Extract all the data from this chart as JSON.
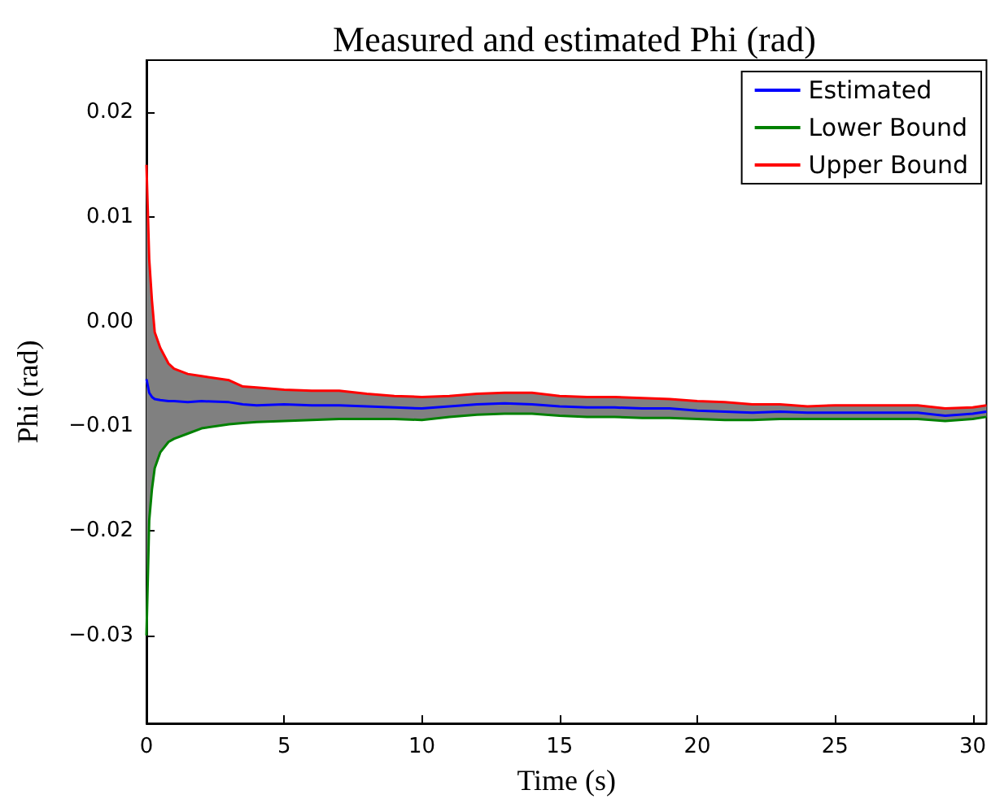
{
  "chart_data": {
    "type": "line",
    "title": "Measured and estimated Phi (rad)",
    "xlabel": "Time (s)",
    "ylabel": "Phi (rad)",
    "x": [
      0,
      0.1,
      0.2,
      0.3,
      0.5,
      0.8,
      1,
      1.5,
      2,
      3,
      3.5,
      4,
      5,
      6,
      7,
      8,
      9,
      10,
      11,
      12,
      13,
      14,
      15,
      16,
      17,
      18,
      19,
      20,
      21,
      22,
      23,
      24,
      25,
      26,
      27,
      28,
      29,
      30,
      30.5
    ],
    "series": [
      {
        "name": "Estimated",
        "color": "#0000ff",
        "values": [
          -0.0055,
          -0.0068,
          -0.0072,
          -0.0074,
          -0.0075,
          -0.0076,
          -0.0076,
          -0.0077,
          -0.0076,
          -0.0077,
          -0.0079,
          -0.008,
          -0.0079,
          -0.008,
          -0.008,
          -0.0081,
          -0.0082,
          -0.0083,
          -0.0081,
          -0.0079,
          -0.0078,
          -0.0079,
          -0.0081,
          -0.0082,
          -0.0082,
          -0.0083,
          -0.0083,
          -0.0085,
          -0.0086,
          -0.0087,
          -0.0086,
          -0.0087,
          -0.0087,
          -0.0087,
          -0.0087,
          -0.0087,
          -0.009,
          -0.0088,
          -0.0086
        ],
        "lower": [
          -0.03,
          -0.019,
          -0.016,
          -0.014,
          -0.0125,
          -0.0115,
          -0.0112,
          -0.0107,
          -0.0102,
          -0.0098,
          -0.0097,
          -0.0096,
          -0.0095,
          -0.0094,
          -0.0093,
          -0.0093,
          -0.0093,
          -0.0094,
          -0.0091,
          -0.0089,
          -0.0088,
          -0.0088,
          -0.009,
          -0.0091,
          -0.0091,
          -0.0092,
          -0.0092,
          -0.0093,
          -0.0094,
          -0.0094,
          -0.0093,
          -0.0093,
          -0.0093,
          -0.0093,
          -0.0093,
          -0.0093,
          -0.0095,
          -0.0093,
          -0.0091
        ],
        "upper": [
          0.015,
          0.006,
          0.002,
          -0.001,
          -0.0025,
          -0.004,
          -0.0045,
          -0.005,
          -0.0052,
          -0.0056,
          -0.0062,
          -0.0063,
          -0.0065,
          -0.0066,
          -0.0066,
          -0.0069,
          -0.0071,
          -0.0072,
          -0.0071,
          -0.0069,
          -0.0068,
          -0.0068,
          -0.0071,
          -0.0072,
          -0.0072,
          -0.0073,
          -0.0074,
          -0.0076,
          -0.0077,
          -0.0079,
          -0.0079,
          -0.0081,
          -0.008,
          -0.008,
          -0.008,
          -0.008,
          -0.0083,
          -0.0082,
          -0.008
        ]
      },
      {
        "name": "Lower Bound",
        "color": "#008000",
        "values": [
          -0.03,
          -0.019,
          -0.016,
          -0.014,
          -0.0125,
          -0.0115,
          -0.0112,
          -0.0107,
          -0.0102,
          -0.0098,
          -0.0097,
          -0.0096,
          -0.0095,
          -0.0094,
          -0.0093,
          -0.0093,
          -0.0093,
          -0.0094,
          -0.0091,
          -0.0089,
          -0.0088,
          -0.0088,
          -0.009,
          -0.0091,
          -0.0091,
          -0.0092,
          -0.0092,
          -0.0093,
          -0.0094,
          -0.0094,
          -0.0093,
          -0.0093,
          -0.0093,
          -0.0093,
          -0.0093,
          -0.0093,
          -0.0095,
          -0.0093,
          -0.0091
        ]
      },
      {
        "name": "Upper Bound",
        "color": "#ff0000",
        "values": [
          0.015,
          0.006,
          0.002,
          -0.001,
          -0.0025,
          -0.004,
          -0.0045,
          -0.005,
          -0.0052,
          -0.0056,
          -0.0062,
          -0.0063,
          -0.0065,
          -0.0066,
          -0.0066,
          -0.0069,
          -0.0071,
          -0.0072,
          -0.0071,
          -0.0069,
          -0.0068,
          -0.0068,
          -0.0071,
          -0.0072,
          -0.0072,
          -0.0073,
          -0.0074,
          -0.0076,
          -0.0077,
          -0.0079,
          -0.0079,
          -0.0081,
          -0.008,
          -0.008,
          -0.008,
          -0.008,
          -0.0083,
          -0.0082,
          -0.008
        ]
      }
    ],
    "xlim": [
      0,
      30.5
    ],
    "xticks": [
      0,
      5,
      10,
      15,
      20,
      25,
      30
    ],
    "ylim": [
      -0.0384,
      0.025
    ],
    "yticks": [
      {
        "value": -0.03,
        "label": "−0.03"
      },
      {
        "value": -0.02,
        "label": "−0.02"
      },
      {
        "value": -0.01,
        "label": "−0.01"
      },
      {
        "value": 0,
        "label": "0.00"
      },
      {
        "value": 0.01,
        "label": "0.01"
      },
      {
        "value": 0.02,
        "label": "0.02"
      }
    ],
    "legend": "top right",
    "grid": false,
    "marker": "none",
    "line_style": "solid"
  }
}
